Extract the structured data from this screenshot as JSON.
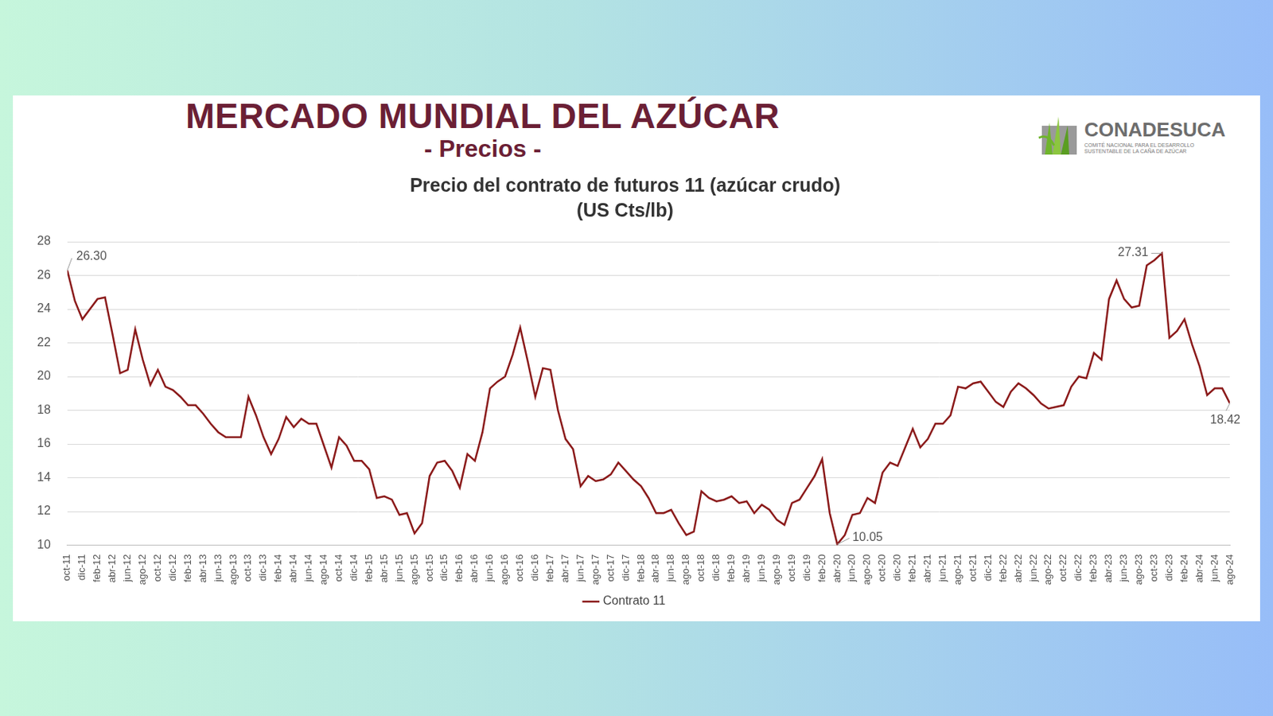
{
  "header": {
    "title": "MERCADO MUNDIAL DEL AZÚCAR",
    "subtitle": "- Precios -",
    "logo": "CONADESUCA",
    "logo_subtitle": "COMITÉ NACIONAL PARA EL DESARROLLO SUSTENTABLE DE LA CAÑA DE AZÚCAR"
  },
  "chart_data": {
    "type": "line",
    "title": "Precio del contrato de futuros 11 (azúcar crudo)",
    "subtitle": "(US Cts/lb)",
    "categories": [
      "oct-11",
      null,
      "dic-11",
      null,
      "feb-12",
      null,
      "abr-12",
      null,
      "jun-12",
      null,
      "ago-12",
      null,
      "oct-12",
      null,
      "dic-12",
      null,
      "feb-13",
      null,
      "abr-13",
      null,
      "jun-13",
      null,
      "ago-13",
      null,
      "oct-13",
      null,
      "dic-13",
      null,
      "feb-14",
      null,
      "abr-14",
      null,
      "jun-14",
      null,
      "ago-14",
      null,
      "oct-14",
      null,
      "dic-14",
      null,
      "feb-15",
      null,
      "abr-15",
      null,
      "jun-15",
      null,
      "ago-15",
      null,
      "oct-15",
      null,
      "dic-15",
      null,
      "feb-16",
      null,
      "abr-16",
      null,
      "jun-16",
      null,
      "ago-16",
      null,
      "oct-16",
      null,
      "dic-16",
      null,
      "feb-17",
      null,
      "abr-17",
      null,
      "jun-17",
      null,
      "ago-17",
      null,
      "oct-17",
      null,
      "dic-17",
      null,
      "feb-18",
      null,
      "abr-18",
      null,
      "jun-18",
      null,
      "ago-18",
      null,
      "oct-18",
      null,
      "dic-18",
      null,
      "feb-19",
      null,
      "abr-19",
      null,
      "jun-19",
      null,
      "ago-19",
      null,
      "oct-19",
      null,
      "dic-19",
      null,
      "feb-20",
      null,
      "abr-20",
      null,
      "jun-20",
      null,
      "ago-20",
      null,
      "oct-20",
      null,
      "dic-20",
      null,
      "feb-21",
      null,
      "abr-21",
      null,
      "jun-21",
      null,
      "ago-21",
      null,
      "oct-21",
      null,
      "dic-21",
      null,
      "feb-22",
      null,
      "abr-22",
      null,
      "jun-22",
      null,
      "ago-22",
      null,
      "oct-22",
      null,
      "dic-22",
      null,
      "feb-23",
      null,
      "abr-23",
      null,
      "jun-23",
      null,
      "ago-23",
      null,
      "oct-23",
      null,
      "dic-23",
      null,
      "feb-24",
      null,
      "abr-24",
      null,
      "jun-24",
      null,
      "ago-24"
    ],
    "series": [
      {
        "name": "Contrato 11",
        "color": "#8b1a1a",
        "values": [
          26.3,
          24.5,
          23.4,
          24.0,
          24.6,
          24.7,
          22.5,
          20.2,
          20.4,
          22.8,
          21.0,
          19.5,
          20.4,
          19.4,
          19.2,
          18.8,
          18.3,
          18.3,
          17.8,
          17.2,
          16.7,
          16.4,
          16.4,
          16.4,
          18.8,
          17.7,
          16.4,
          15.4,
          16.3,
          17.6,
          17.0,
          17.5,
          17.2,
          17.2,
          15.9,
          14.6,
          16.4,
          15.9,
          15.0,
          15.0,
          14.5,
          12.8,
          12.9,
          12.7,
          11.8,
          11.9,
          10.7,
          11.3,
          14.1,
          14.9,
          15.0,
          14.4,
          13.4,
          15.4,
          15.0,
          16.7,
          19.3,
          19.7,
          20.0,
          21.3,
          22.9,
          20.9,
          18.8,
          20.5,
          20.4,
          18.0,
          16.3,
          15.7,
          13.5,
          14.1,
          13.8,
          13.9,
          14.2,
          14.9,
          14.4,
          13.9,
          13.5,
          12.8,
          11.9,
          11.9,
          12.1,
          11.3,
          10.6,
          10.8,
          13.2,
          12.8,
          12.6,
          12.7,
          12.9,
          12.5,
          12.6,
          11.9,
          12.4,
          12.1,
          11.5,
          11.2,
          12.5,
          12.7,
          13.4,
          14.1,
          15.1,
          11.9,
          10.05,
          10.6,
          11.8,
          11.9,
          12.8,
          12.5,
          14.3,
          14.9,
          14.7,
          15.8,
          16.9,
          15.8,
          16.3,
          17.2,
          17.2,
          17.7,
          19.4,
          19.3,
          19.6,
          19.7,
          19.1,
          18.5,
          18.2,
          19.1,
          19.6,
          19.3,
          18.9,
          18.4,
          18.1,
          18.2,
          18.3,
          19.4,
          20.0,
          19.9,
          21.4,
          21.0,
          24.6,
          25.7,
          24.6,
          24.1,
          24.2,
          26.6,
          26.9,
          27.31,
          22.3,
          22.7,
          23.4,
          21.9,
          20.6,
          18.9,
          19.3,
          19.3,
          18.42
        ]
      }
    ],
    "ylim": [
      10,
      28
    ],
    "yticks": [
      10,
      12,
      14,
      16,
      18,
      20,
      22,
      24,
      26,
      28
    ],
    "grid": true,
    "legend": "bottom",
    "annotations": [
      {
        "label": "26.30",
        "value": 26.3
      },
      {
        "label": "27.31",
        "value": 27.31
      },
      {
        "label": "10.05",
        "value": 10.05
      },
      {
        "label": "18.42",
        "value": 18.42
      }
    ]
  }
}
